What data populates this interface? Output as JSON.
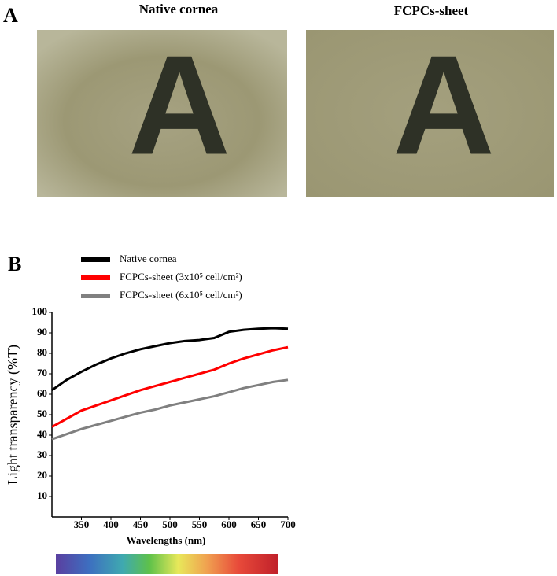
{
  "panel_a": {
    "label": "A",
    "images": [
      {
        "title": "Native cornea",
        "letter": "A"
      },
      {
        "title": "FCPCs-sheet",
        "letter": "A"
      }
    ]
  },
  "panel_b": {
    "label": "B"
  },
  "chart_data": {
    "type": "line",
    "x_label": "Wavelengths (nm)",
    "y_label": "Light transparency (%T)",
    "x": [
      300,
      325,
      350,
      375,
      400,
      425,
      450,
      475,
      500,
      525,
      550,
      575,
      600,
      625,
      650,
      675,
      700
    ],
    "series": [
      {
        "name": "Native cornea",
        "color": "#000000",
        "values": [
          62,
          67,
          71,
          74.5,
          77.5,
          80,
          82,
          83.5,
          85,
          86,
          86.5,
          87.5,
          90.5,
          91.5,
          92,
          92.3,
          92
        ]
      },
      {
        "name": "FCPCs-sheet (3x10⁵ cell/cm²)",
        "color": "#ff0000",
        "values": [
          44,
          48,
          52,
          54.5,
          57,
          59.5,
          62,
          64,
          66,
          68,
          70,
          72,
          75,
          77.5,
          79.5,
          81.5,
          83
        ]
      },
      {
        "name": "FCPCs-sheet (6x10⁵ cell/cm²)",
        "color": "#808080",
        "values": [
          38,
          40.5,
          43,
          45,
          47,
          49,
          51,
          52.5,
          54.5,
          56,
          57.5,
          59,
          61,
          63,
          64.5,
          66,
          67
        ]
      }
    ],
    "xlim": [
      300,
      700
    ],
    "xticks": [
      350,
      400,
      450,
      500,
      550,
      600,
      650,
      700
    ],
    "ylim": [
      0,
      100
    ],
    "yticks": [
      10,
      20,
      30,
      40,
      50,
      60,
      70,
      80,
      90,
      100
    ],
    "legend": "top-left",
    "grid": false
  }
}
